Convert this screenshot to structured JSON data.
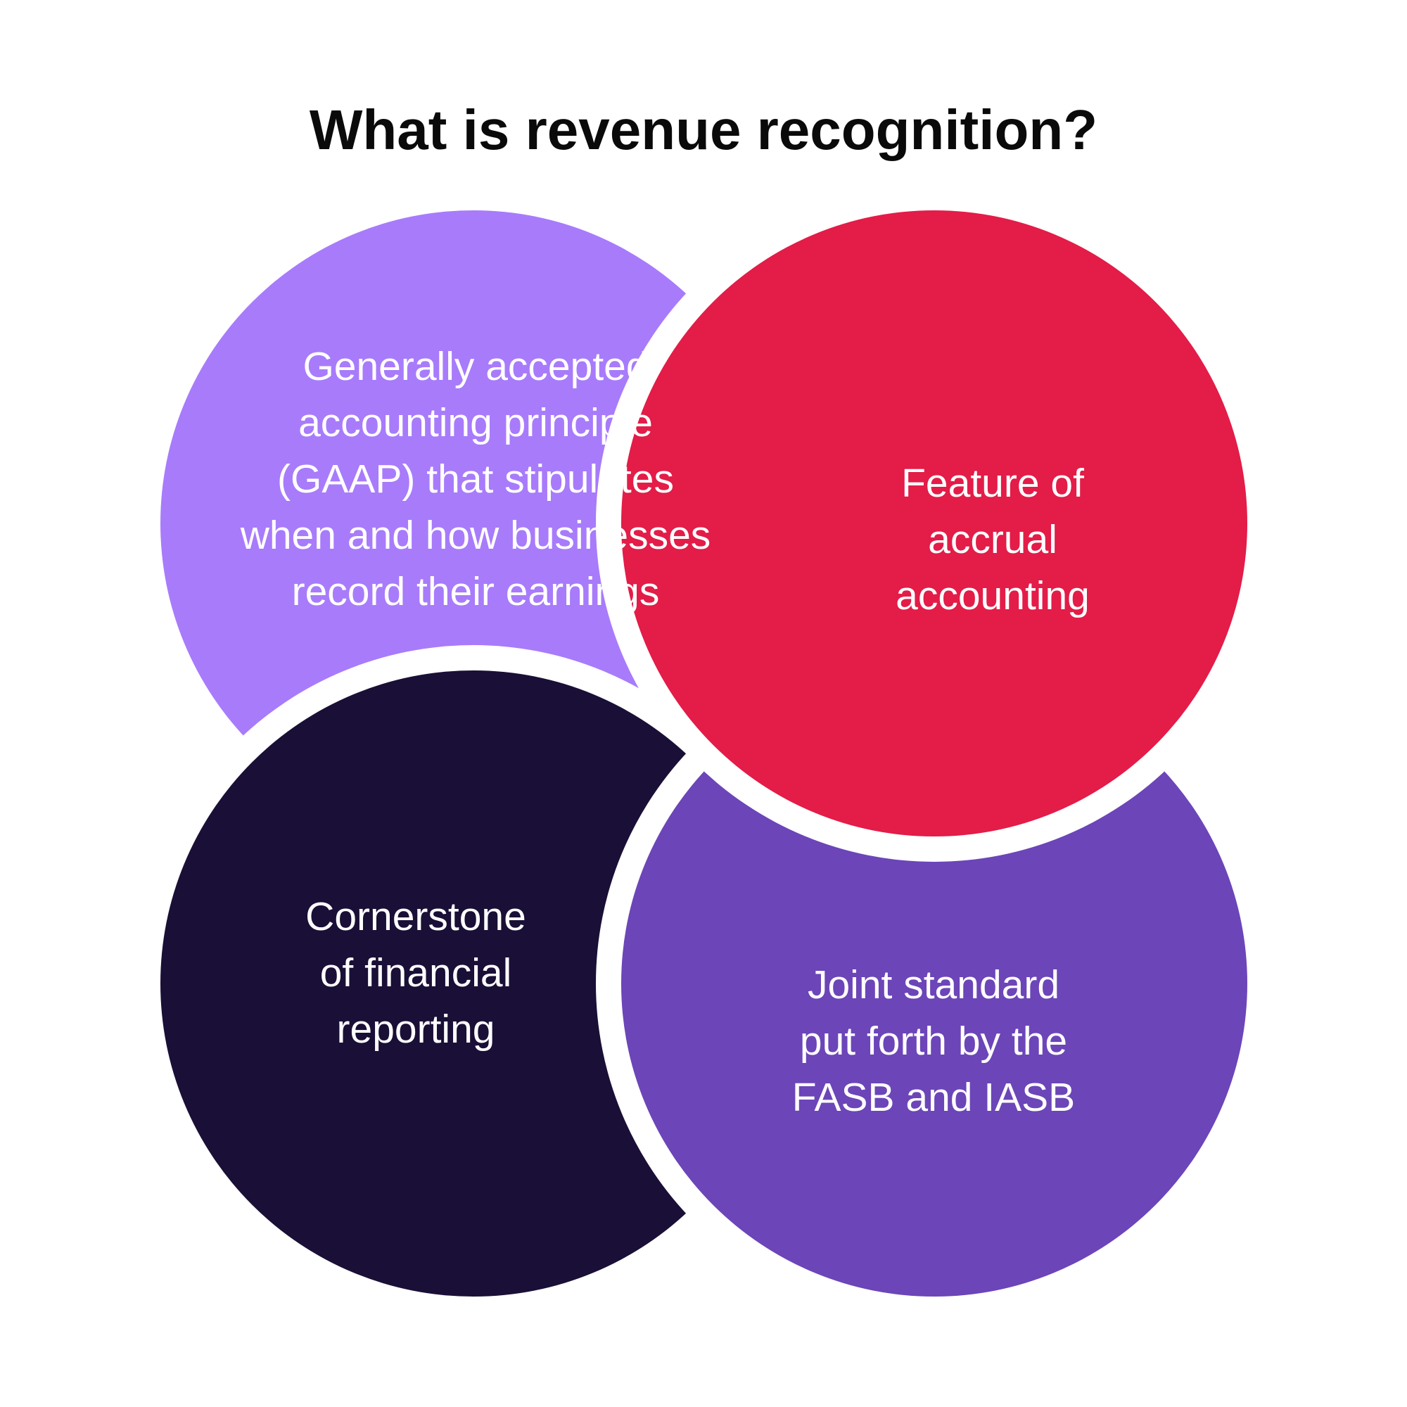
{
  "title": "What is revenue recognition?",
  "circles": [
    {
      "color": "#a87bfb",
      "lines": [
        "Generally accepted",
        "accounting principle",
        "(GAAP) that stipulates",
        "when and how businesses",
        "record their earnings"
      ]
    },
    {
      "color": "#1a0f36",
      "lines": [
        "Cornerstone",
        "of financial",
        "reporting"
      ]
    },
    {
      "color": "#6c45b8",
      "lines": [
        "Joint standard",
        "put forth by the",
        "FASB and IASB"
      ]
    },
    {
      "color": "#e31c48",
      "lines": [
        "Feature of",
        "accrual",
        "accounting"
      ]
    }
  ]
}
